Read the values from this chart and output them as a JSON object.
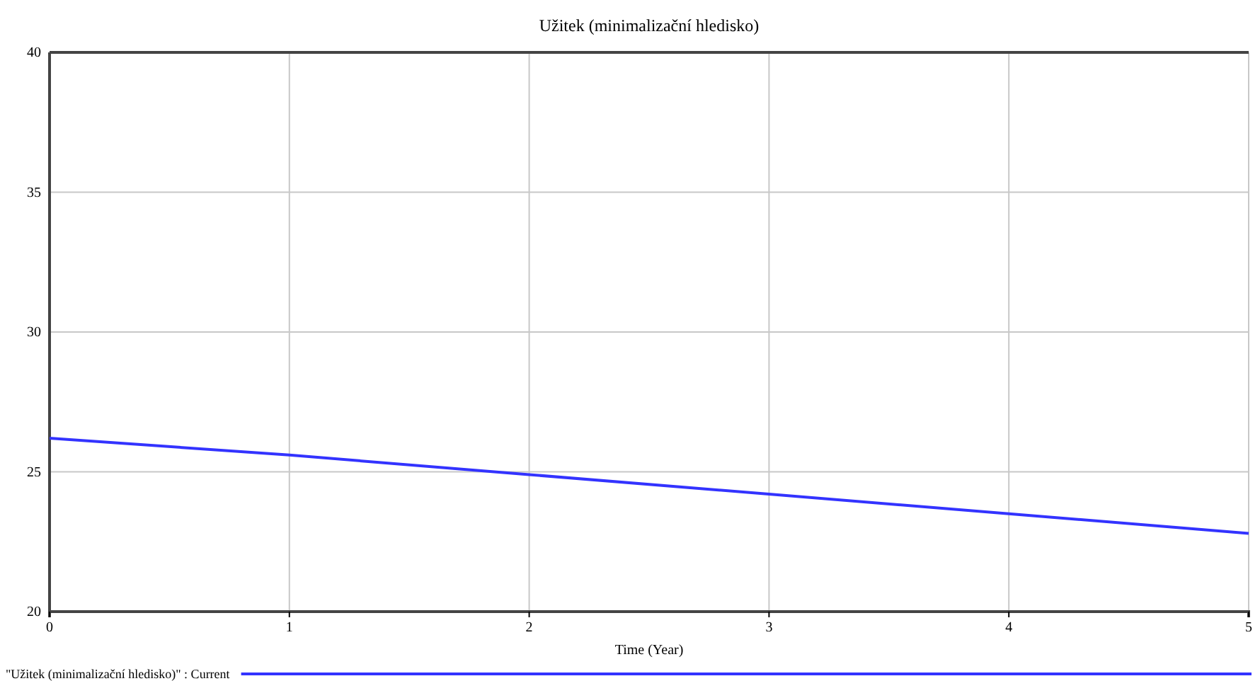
{
  "chart_data": {
    "type": "line",
    "title": "Užitek (minimalizační hledisko)",
    "xlabel": "Time (Year)",
    "x": [
      0,
      1,
      2,
      3,
      4,
      5
    ],
    "series": [
      {
        "name": "\"Užitek (minimalizační hledisko)\" : Current",
        "color": "#3333ff",
        "values": [
          26.2,
          25.6,
          24.9,
          24.2,
          23.5,
          22.8
        ]
      }
    ],
    "xlim": [
      0,
      5
    ],
    "xticks": [
      0,
      1,
      2,
      3,
      4,
      5
    ],
    "ylim": [
      20,
      40
    ],
    "yticks": [
      20,
      25,
      30,
      35,
      40
    ],
    "grid": true,
    "legend": "bottom left",
    "line_style": "solid",
    "marker": "none"
  }
}
